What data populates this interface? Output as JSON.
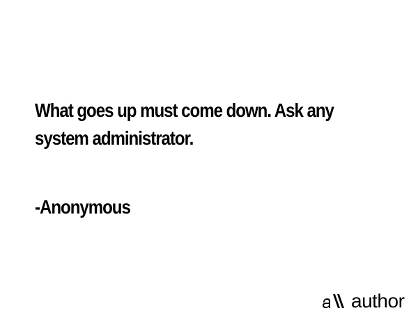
{
  "quote": {
    "line1": "What goes up must come down. Ask any",
    "line2": "system administrator."
  },
  "attribution": "-Anonymous",
  "brand": {
    "logo_text": "allauthor",
    "logo_icon": "allauthor-logo"
  },
  "colors": {
    "background": "#ffffff",
    "text": "#000000"
  }
}
